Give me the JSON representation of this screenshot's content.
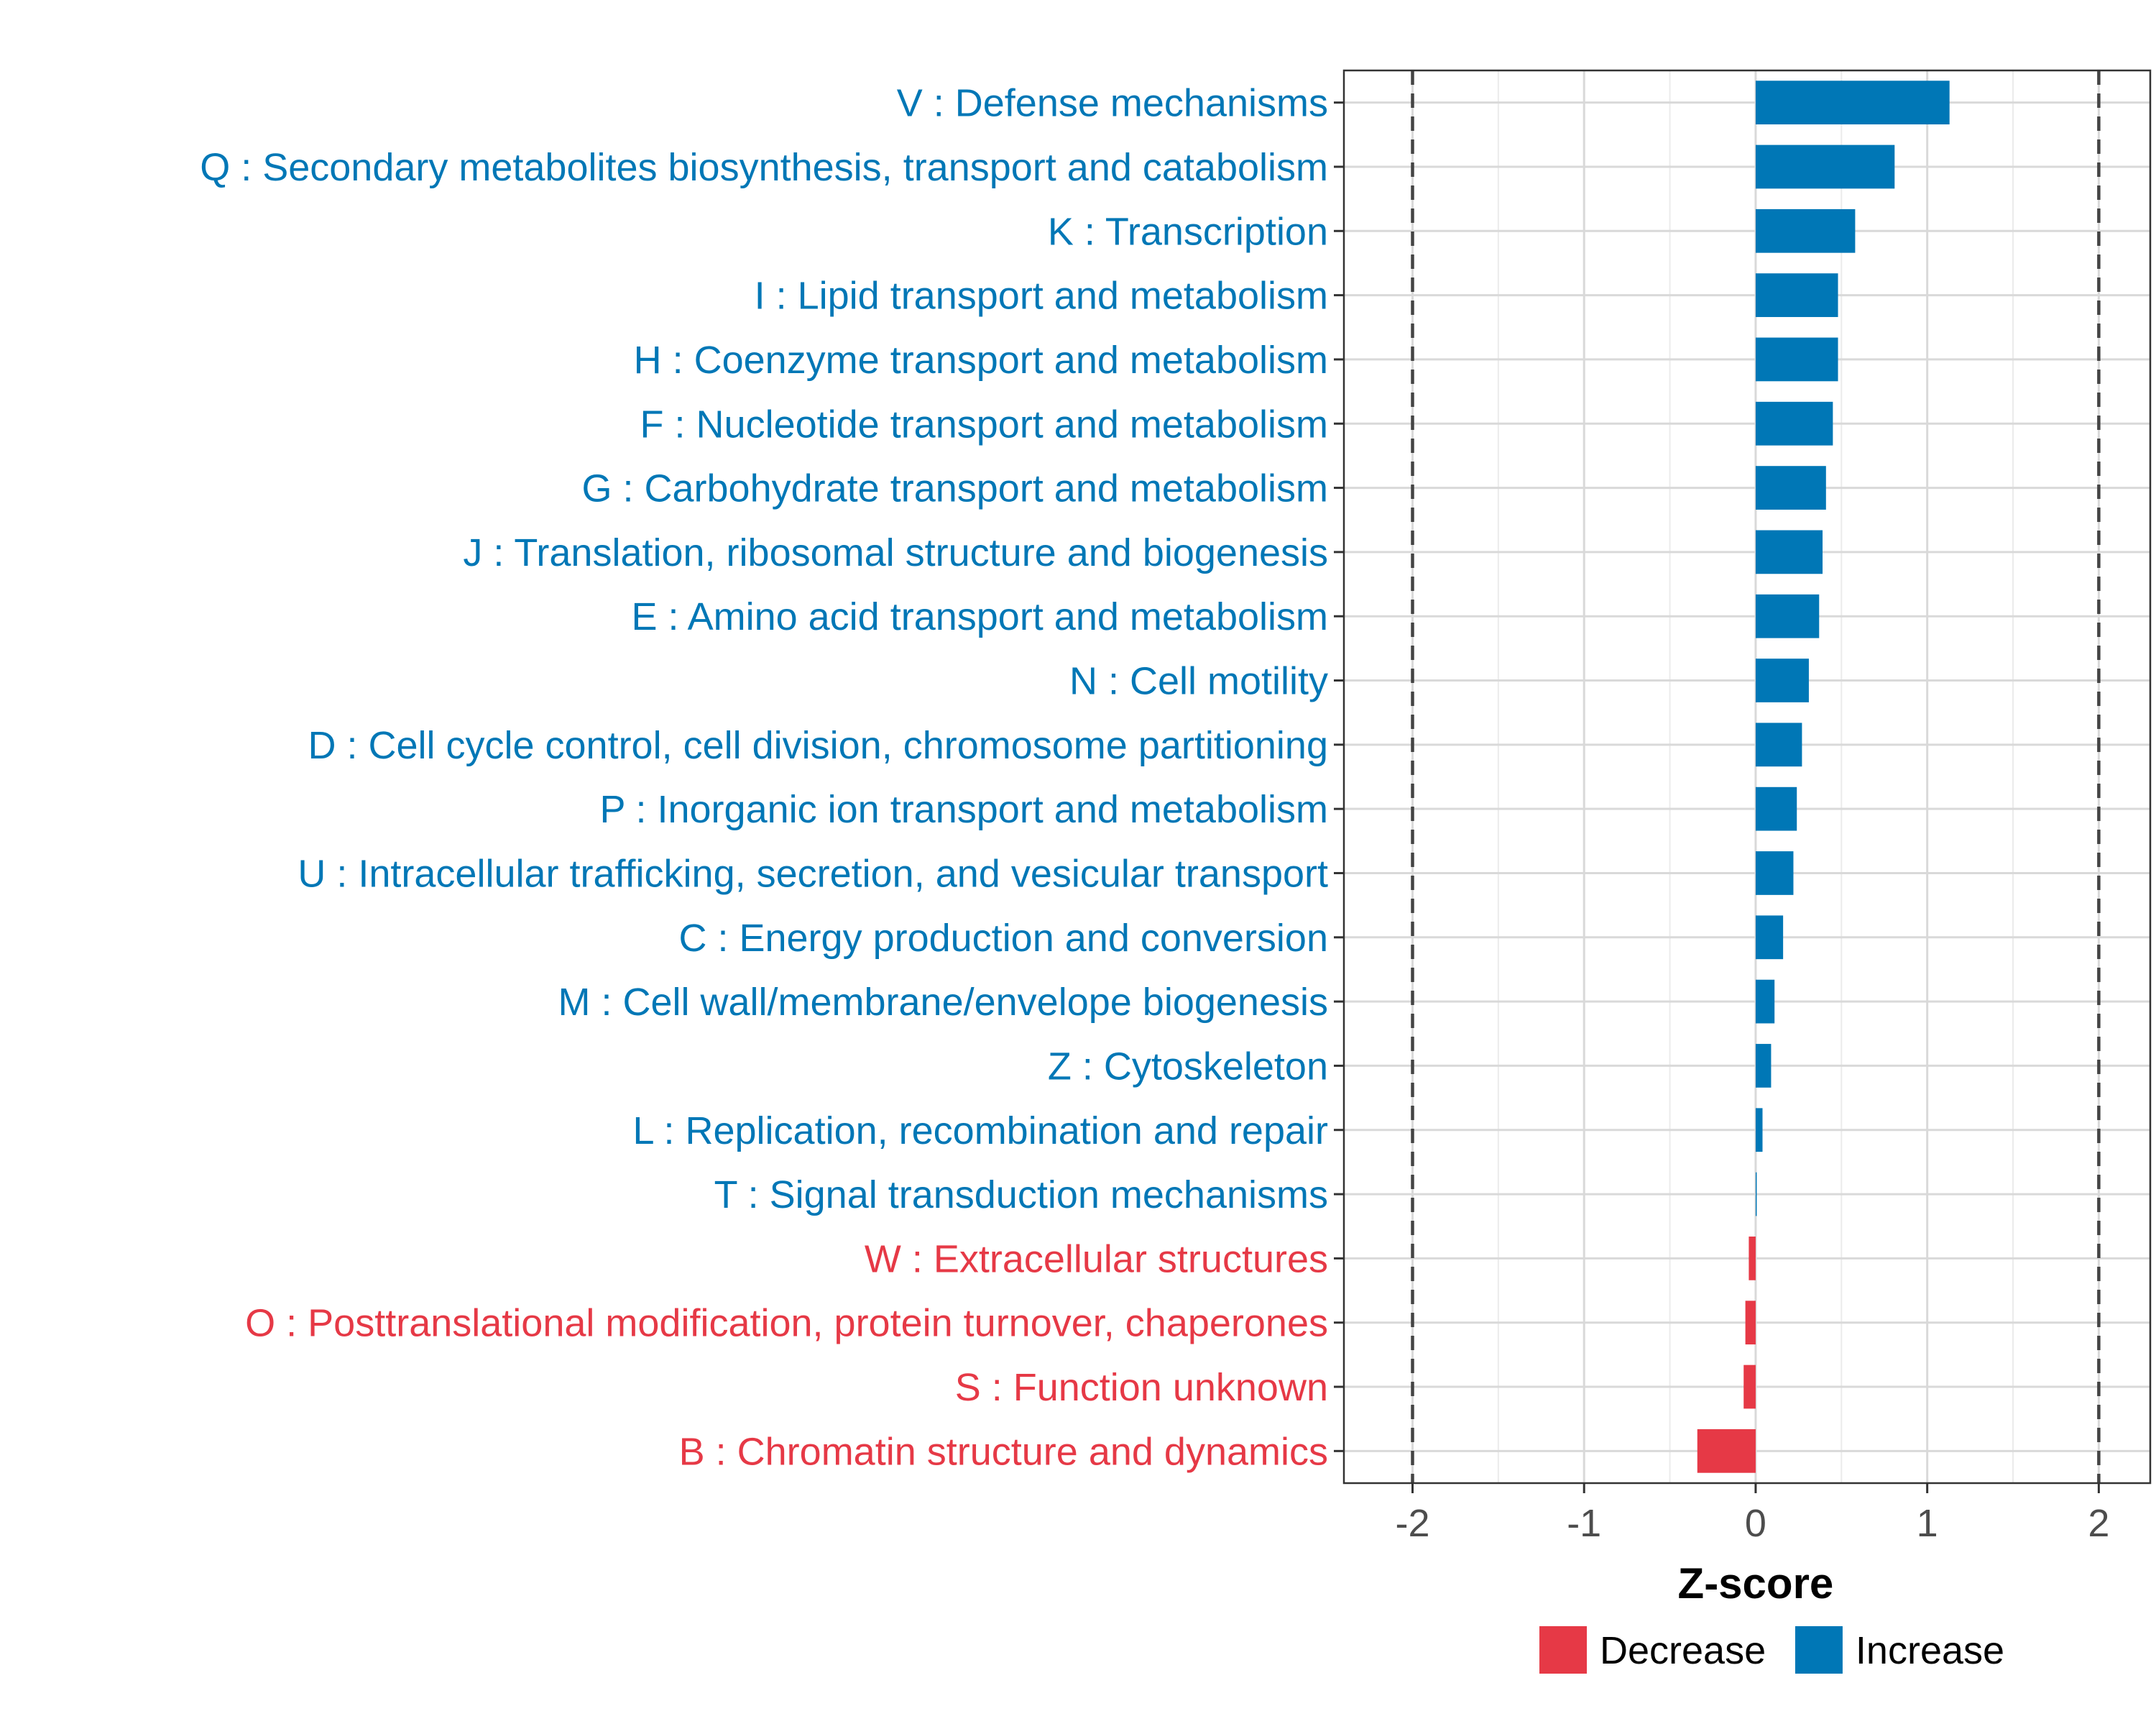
{
  "chart_data": {
    "type": "bar",
    "orientation": "horizontal",
    "xlabel": "Z-score",
    "ylabel": "",
    "xlim": [
      -2.4,
      2.3
    ],
    "x_ticks": [
      -2,
      -1,
      0,
      1,
      2
    ],
    "x_tick_labels": [
      "-2",
      "-1",
      "0",
      "1",
      "2"
    ],
    "reference_lines": [
      -2,
      2
    ],
    "grid": true,
    "legend_position": "bottom",
    "legend": [
      {
        "label": "Decrease",
        "color": "#E63946"
      },
      {
        "label": "Increase",
        "color": "#0077B6"
      }
    ],
    "categories": [
      "V : Defense mechanisms",
      "Q : Secondary metabolites biosynthesis, transport and catabolism",
      "K : Transcription",
      "I : Lipid transport and metabolism",
      "H : Coenzyme transport and metabolism",
      "F : Nucleotide transport and metabolism",
      "G : Carbohydrate transport and metabolism",
      "J : Translation, ribosomal structure and biogenesis",
      "E : Amino acid transport and metabolism",
      "N : Cell motility",
      "D : Cell cycle control, cell division, chromosome partitioning",
      "P : Inorganic ion transport and metabolism",
      "U : Intracellular trafficking, secretion, and vesicular transport",
      "C : Energy production and conversion",
      "M : Cell wall/membrane/envelope biogenesis",
      "Z : Cytoskeleton",
      "L : Replication, recombination and repair",
      "T : Signal transduction mechanisms",
      "W : Extracellular structures",
      "O : Posttranslational modification, protein turnover, chaperones",
      "S : Function unknown",
      "B : Chromatin structure and dynamics"
    ],
    "values": [
      1.13,
      0.81,
      0.58,
      0.48,
      0.48,
      0.45,
      0.41,
      0.39,
      0.37,
      0.31,
      0.27,
      0.24,
      0.22,
      0.16,
      0.11,
      0.09,
      0.04,
      0.005,
      -0.04,
      -0.06,
      -0.07,
      -0.34
    ],
    "direction": [
      "Increase",
      "Increase",
      "Increase",
      "Increase",
      "Increase",
      "Increase",
      "Increase",
      "Increase",
      "Increase",
      "Increase",
      "Increase",
      "Increase",
      "Increase",
      "Increase",
      "Increase",
      "Increase",
      "Increase",
      "Increase",
      "Decrease",
      "Decrease",
      "Decrease",
      "Decrease"
    ]
  }
}
